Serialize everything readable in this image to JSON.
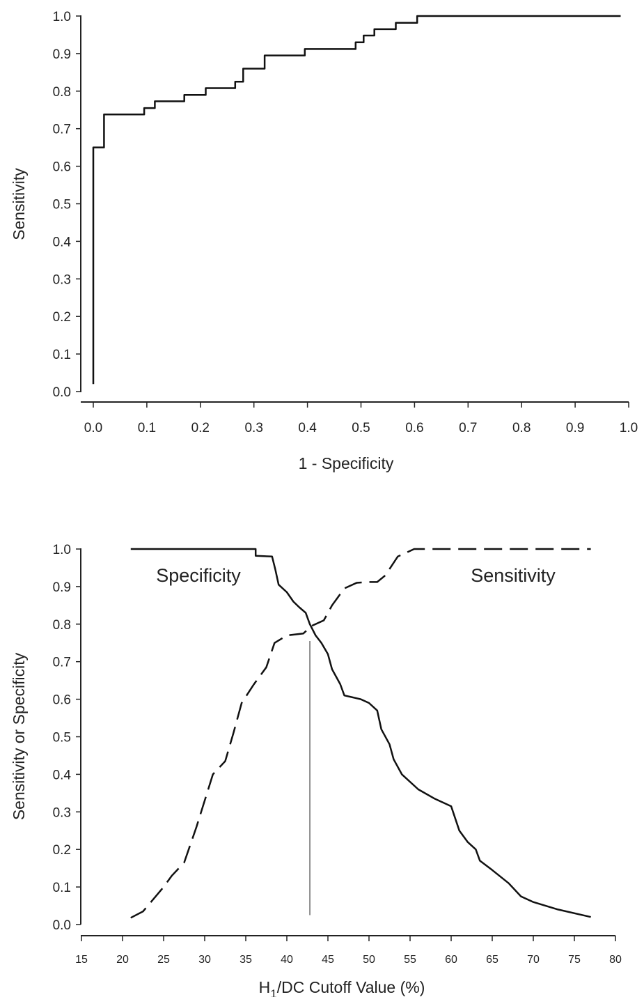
{
  "chart_data": [
    {
      "type": "line",
      "title": "",
      "xlabel": "1 - Specificity",
      "ylabel": "Sensitivity",
      "xlim": [
        0,
        1
      ],
      "ylim": [
        0,
        1
      ],
      "x_ticks": [
        "0.0",
        "0.1",
        "0.2",
        "0.3",
        "0.4",
        "0.5",
        "0.6",
        "0.7",
        "0.8",
        "0.9",
        "1.0"
      ],
      "y_ticks": [
        "0.0",
        "0.1",
        "0.2",
        "0.3",
        "0.4",
        "0.5",
        "0.6",
        "0.7",
        "0.8",
        "0.9",
        "1.0"
      ],
      "grid": false,
      "series": [
        {
          "style": "solid",
          "step": true,
          "x": [
            0.0,
            0.0,
            0.0,
            0.02,
            0.02,
            0.095,
            0.095,
            0.115,
            0.115,
            0.17,
            0.17,
            0.21,
            0.21,
            0.265,
            0.265,
            0.28,
            0.28,
            0.32,
            0.32,
            0.395,
            0.395,
            0.49,
            0.49,
            0.505,
            0.505,
            0.525,
            0.525,
            0.565,
            0.565,
            0.605,
            0.605,
            0.985
          ],
          "y": [
            0.02,
            0.65,
            0.65,
            0.65,
            0.738,
            0.738,
            0.755,
            0.755,
            0.773,
            0.773,
            0.79,
            0.79,
            0.808,
            0.808,
            0.825,
            0.825,
            0.86,
            0.86,
            0.895,
            0.895,
            0.912,
            0.912,
            0.93,
            0.93,
            0.948,
            0.948,
            0.965,
            0.965,
            0.982,
            0.982,
            1.0,
            1.0
          ]
        }
      ]
    },
    {
      "type": "line",
      "title": "",
      "xlabel": "H",
      "xlabel_sub": "1",
      "xlabel_rest": "/DC Cutoff Value (%)",
      "ylabel": "Sensitivity or Specificity",
      "xlim": [
        15,
        80
      ],
      "ylim": [
        0,
        1
      ],
      "x_ticks": [
        "15",
        "20",
        "25",
        "30",
        "35",
        "40",
        "45",
        "50",
        "55",
        "60",
        "65",
        "70",
        "75",
        "80"
      ],
      "y_ticks": [
        "0.0",
        "0.1",
        "0.2",
        "0.3",
        "0.4",
        "0.5",
        "0.6",
        "0.7",
        "0.8",
        "0.9",
        "1.0"
      ],
      "grid": false,
      "annotations": [
        "Specificity",
        "Sensitivity"
      ],
      "cutoff_x": 42.8,
      "cutoff_y_range": [
        0.025,
        0.755
      ],
      "series": [
        {
          "name": "Specificity",
          "style": "solid",
          "x": [
            21,
            36.2,
            36.2,
            38.2,
            38.6,
            39,
            40,
            40.8,
            41.5,
            42.3,
            42.8,
            43.5,
            44.2,
            45,
            45.5,
            46.5,
            47,
            48,
            49,
            50,
            51,
            51.5,
            52.5,
            53,
            54,
            56,
            58,
            60,
            61,
            62,
            63,
            63.5,
            65,
            67,
            68.5,
            70,
            73,
            77
          ],
          "y": [
            1.0,
            1.0,
            0.982,
            0.98,
            0.945,
            0.905,
            0.885,
            0.86,
            0.845,
            0.83,
            0.8,
            0.77,
            0.75,
            0.72,
            0.68,
            0.64,
            0.61,
            0.605,
            0.6,
            0.59,
            0.57,
            0.52,
            0.48,
            0.44,
            0.4,
            0.36,
            0.335,
            0.315,
            0.25,
            0.22,
            0.2,
            0.17,
            0.145,
            0.11,
            0.075,
            0.06,
            0.04,
            0.02
          ]
        },
        {
          "name": "Sensitivity",
          "style": "dashed",
          "x": [
            21,
            22.5,
            25,
            26,
            27.5,
            29,
            30,
            31,
            32.5,
            33.5,
            34.5,
            36,
            37.5,
            38.5,
            40,
            42,
            43,
            44.5,
            45.5,
            47,
            48.5,
            50,
            51,
            52,
            53.5,
            54.5,
            55.5,
            60,
            65,
            70,
            75,
            77
          ],
          "y": [
            0.018,
            0.035,
            0.1,
            0.13,
            0.165,
            0.26,
            0.33,
            0.4,
            0.435,
            0.51,
            0.59,
            0.64,
            0.685,
            0.75,
            0.77,
            0.775,
            0.795,
            0.81,
            0.85,
            0.895,
            0.91,
            0.912,
            0.912,
            0.93,
            0.98,
            0.99,
            1.0,
            1.0,
            1.0,
            1.0,
            1.0,
            1.0
          ]
        }
      ]
    }
  ]
}
